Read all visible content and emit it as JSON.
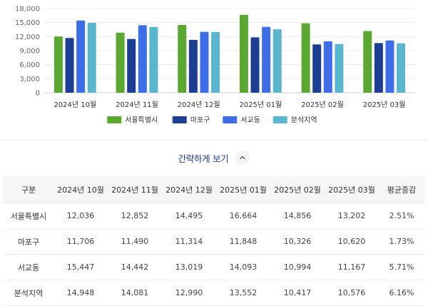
{
  "chart_data": {
    "type": "bar",
    "categories": [
      "2024년 10월",
      "2024년 11월",
      "2024년 12월",
      "2025년 01월",
      "2025년 02월",
      "2025년 03월"
    ],
    "series": [
      {
        "name": "서울특별시",
        "color": "#5aa832",
        "values": [
          12036,
          12852,
          14495,
          16664,
          14856,
          13202
        ]
      },
      {
        "name": "마포구",
        "color": "#1c3f94",
        "values": [
          11706,
          11490,
          11314,
          11848,
          10326,
          10620
        ]
      },
      {
        "name": "서교동",
        "color": "#3d6ee8",
        "values": [
          15447,
          14442,
          13019,
          14093,
          10994,
          11167
        ]
      },
      {
        "name": "분석지역",
        "color": "#5ab6cf",
        "values": [
          14948,
          14081,
          12990,
          13552,
          10417,
          10576
        ]
      }
    ],
    "ylim": [
      0,
      18000
    ],
    "yticks": [
      0,
      3000,
      6000,
      9000,
      12000,
      15000,
      18000
    ],
    "ytick_labels": [
      "0",
      "3,000",
      "6,000",
      "9,000",
      "12,000",
      "15,000",
      "18,000"
    ],
    "grid": true,
    "legend": "bottom-center"
  },
  "toggle": {
    "label": "간략하게 보기",
    "icon": "chevron-up-icon"
  },
  "table": {
    "headers": [
      "구분",
      "2024년 10월",
      "2024년 11월",
      "2024년 12월",
      "2025년 01월",
      "2025년 02월",
      "2025년 03월",
      "평균증감"
    ],
    "rows": [
      {
        "region": "서울특별시",
        "cells": [
          "12,036",
          "12,852",
          "14,495",
          "16,664",
          "14,856",
          "13,202",
          "2.51%"
        ]
      },
      {
        "region": "마포구",
        "cells": [
          "11,706",
          "11,490",
          "11,314",
          "11,848",
          "10,326",
          "10,620",
          "1.73%"
        ]
      },
      {
        "region": "서교동",
        "cells": [
          "15,447",
          "14,442",
          "13,019",
          "14,093",
          "10,994",
          "11,167",
          "5.71%"
        ]
      },
      {
        "region": "분석지역",
        "cells": [
          "14,948",
          "14,081",
          "12,990",
          "13,552",
          "10,417",
          "10,576",
          "6.16%"
        ]
      }
    ]
  }
}
